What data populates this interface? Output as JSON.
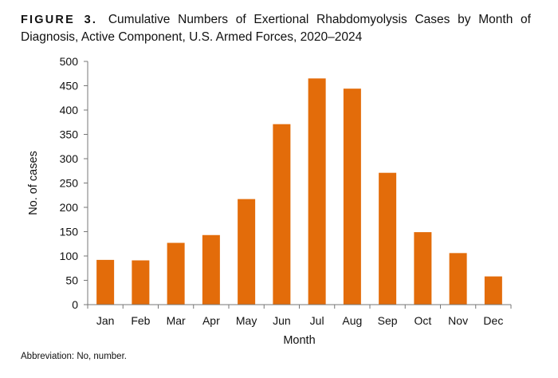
{
  "figure": {
    "label": "FIGURE 3.",
    "title": "Cumulative Numbers of Exertional Rhabdomyolysis Cases by Month of Diagnosis, Active Component, U.S. Armed Forces, 2020–2024"
  },
  "footnote": "Abbreviation: No, number.",
  "chart_data": {
    "type": "bar",
    "categories": [
      "Jan",
      "Feb",
      "Mar",
      "Apr",
      "May",
      "Jun",
      "Jul",
      "Aug",
      "Sep",
      "Oct",
      "Nov",
      "Dec"
    ],
    "values": [
      92,
      91,
      127,
      143,
      217,
      371,
      465,
      444,
      271,
      149,
      106,
      58
    ],
    "xlabel": "Month",
    "ylabel": "No. of cases",
    "ylim": [
      0,
      500
    ],
    "yticks": [
      0,
      50,
      100,
      150,
      200,
      250,
      300,
      350,
      400,
      450,
      500
    ],
    "bar_color": "#E36C0A",
    "grid": false,
    "legend": "none"
  }
}
